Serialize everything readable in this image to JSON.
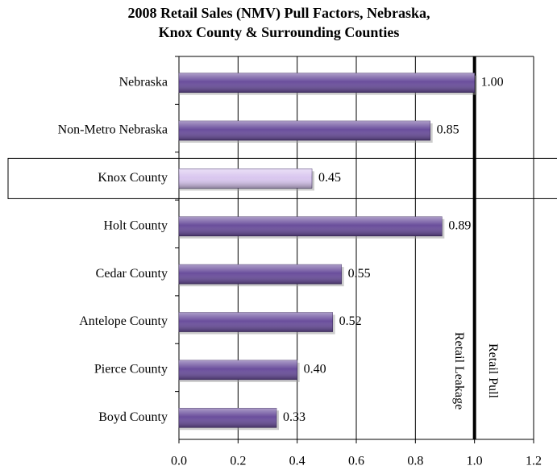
{
  "chart_data": {
    "type": "hbar",
    "title": [
      "2008  Retail Sales (NMV) Pull Factors, Nebraska,",
      "Knox County & Surrounding Counties"
    ],
    "categories": [
      "Nebraska",
      "Non-Metro Nebraska",
      "Knox County",
      "Holt County",
      "Cedar County",
      "Antelope County",
      "Pierce County",
      "Boyd County"
    ],
    "values": [
      1.0,
      0.85,
      0.45,
      0.89,
      0.55,
      0.52,
      0.4,
      0.33
    ],
    "value_labels": [
      "1.00",
      "0.85",
      "0.45",
      "0.89",
      "0.55",
      "0.52",
      "0.40",
      "0.33"
    ],
    "colors": [
      "#6a4e9c",
      "#6a4e9c",
      "#d9c6ef",
      "#6a4e9c",
      "#6a4e9c",
      "#6a4e9c",
      "#6a4e9c",
      "#6a4e9c"
    ],
    "highlight": "Knox County",
    "xlim": [
      0,
      1.2
    ],
    "xticks": [
      {
        "value": 0,
        "label": "0.0"
      },
      {
        "value": 0.2,
        "label": "0.2"
      },
      {
        "value": 0.4,
        "label": "0.4"
      },
      {
        "value": 0.6,
        "label": "0.6"
      },
      {
        "value": 0.8,
        "label": "0.8"
      },
      {
        "value": 1.0,
        "label": "1.0"
      },
      {
        "value": 1.2,
        "label": "1.2"
      }
    ],
    "reference_x": 1.0,
    "annotations": [
      "Retail Leakage",
      "Retail Pull"
    ],
    "grid": true
  }
}
